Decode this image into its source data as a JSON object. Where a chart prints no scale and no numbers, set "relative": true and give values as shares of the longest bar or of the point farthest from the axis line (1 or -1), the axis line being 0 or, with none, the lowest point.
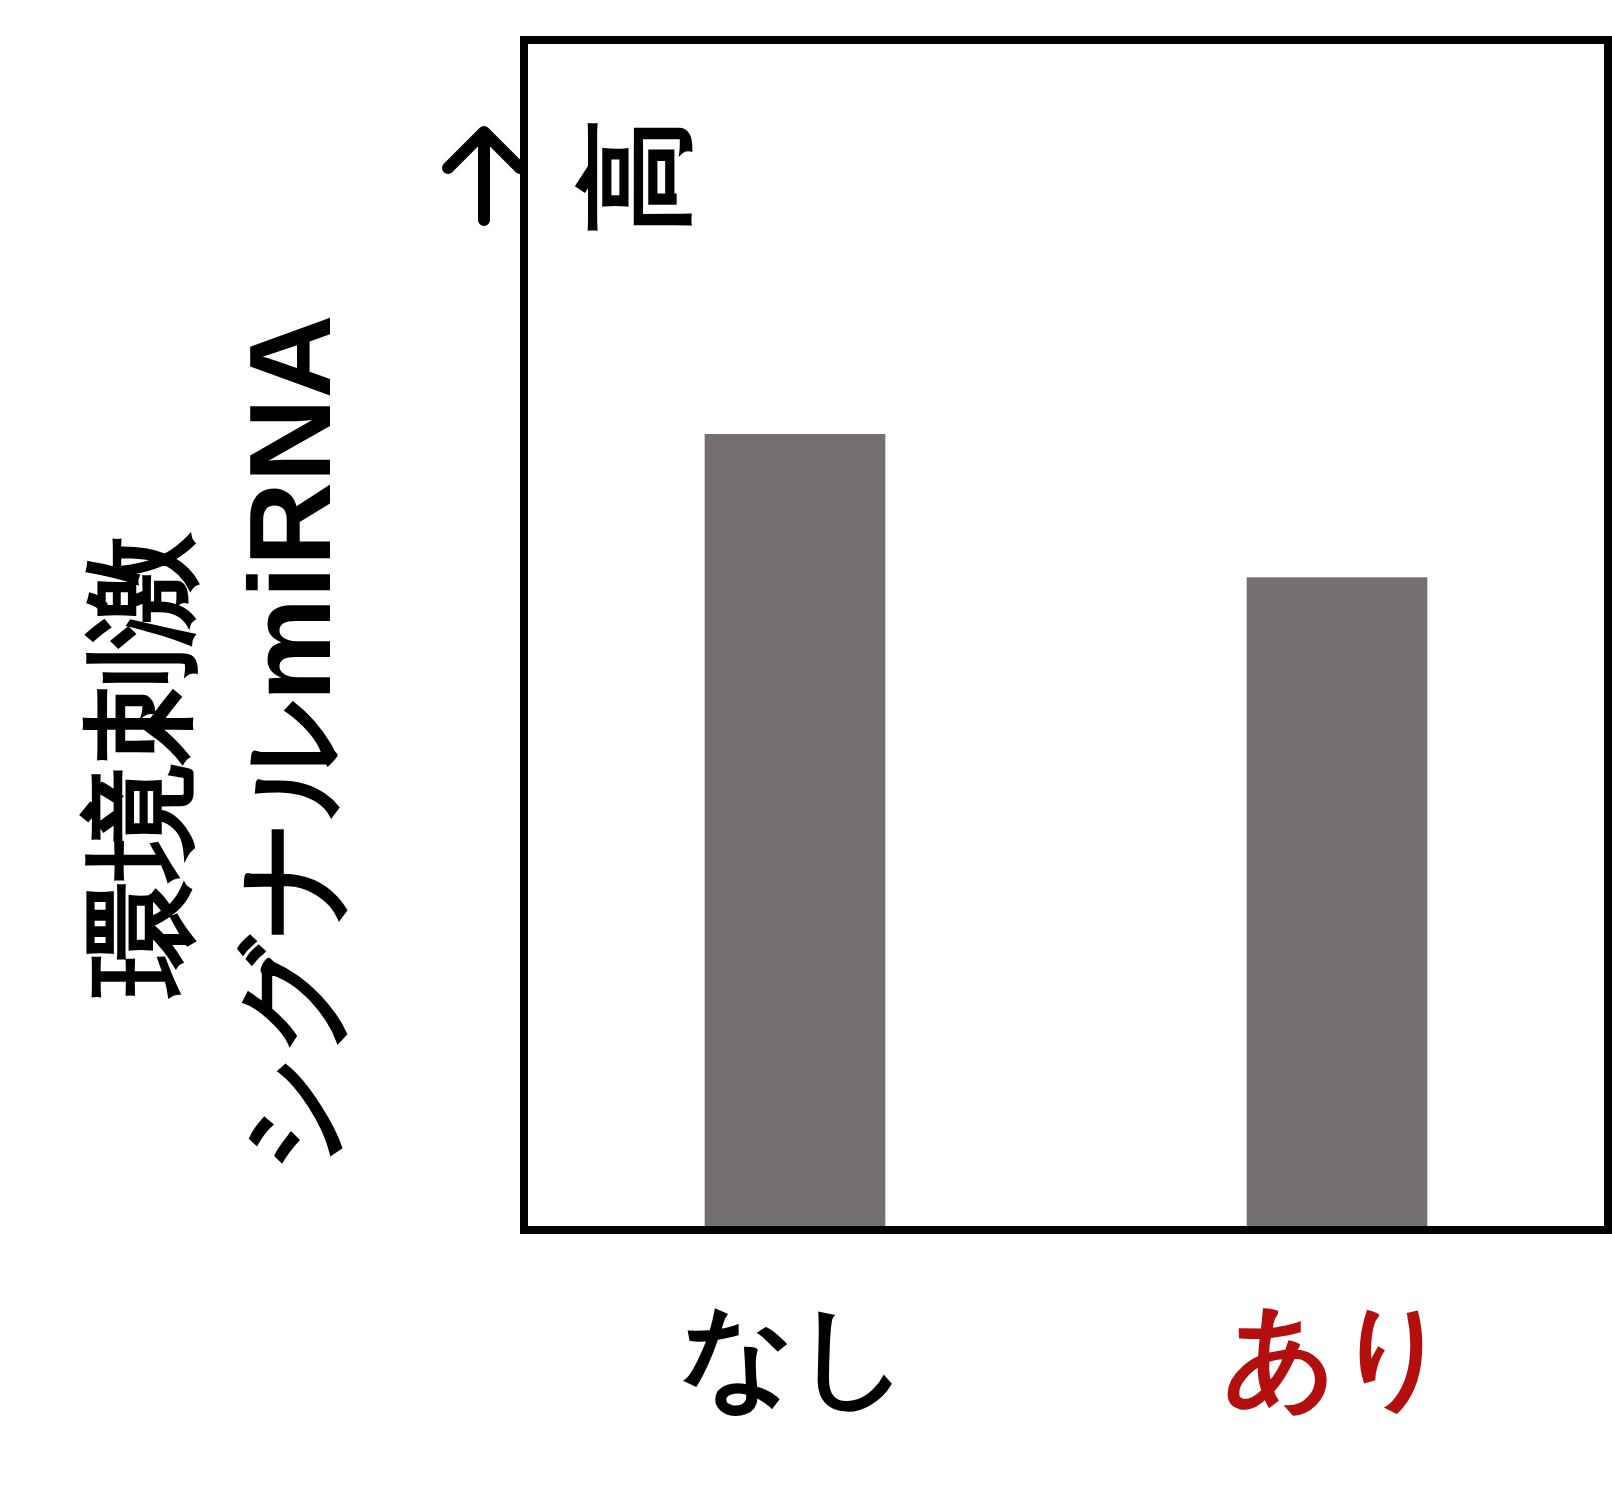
{
  "chart_data": {
    "type": "bar",
    "relative": true,
    "categories": [
      "なし",
      "あり"
    ],
    "values": [
      1,
      0.82
    ],
    "color": "#757070",
    "ylabel": "環境刺激シグナルmiRNA",
    "annotations": [
      "高"
    ]
  }
}
